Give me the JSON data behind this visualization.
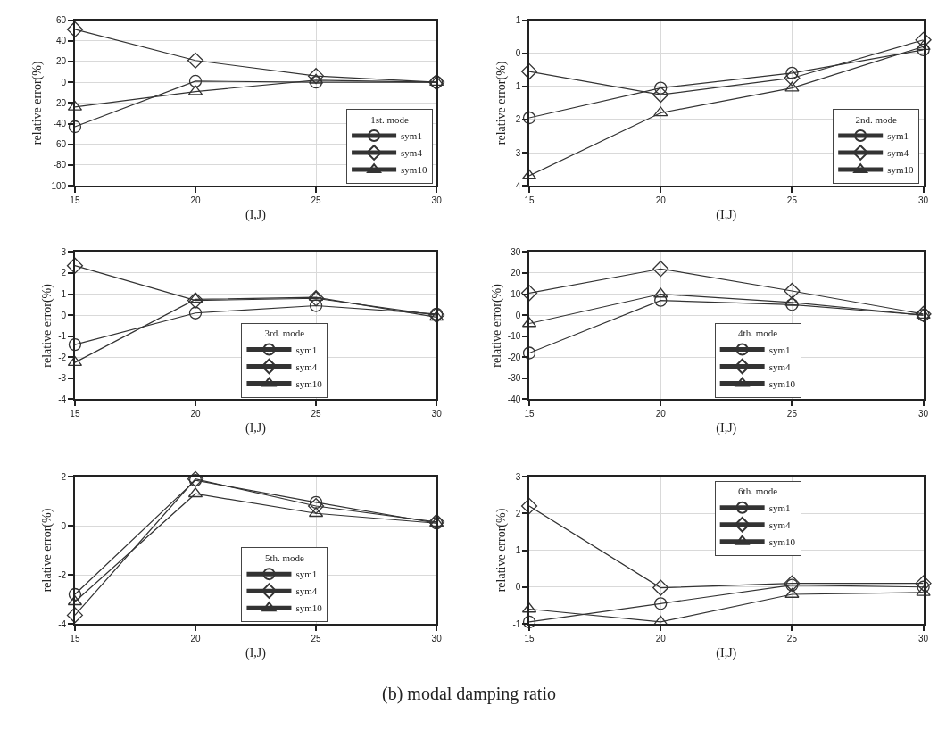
{
  "chart_data": [
    {
      "type": "line",
      "xlabel": "(I,J)",
      "ylabel": "relative error(%)",
      "legend_title": "1st. mode",
      "legend": "bottom right",
      "grid": true,
      "x": [
        15,
        20,
        25,
        30
      ],
      "xlim": [
        15,
        30
      ],
      "xticks": [
        15,
        20,
        25,
        30
      ],
      "ylim": [
        -100,
        60
      ],
      "yticks": [
        -100,
        -80,
        -60,
        -40,
        -20,
        0,
        20,
        40,
        60
      ],
      "series": [
        {
          "name": "sym1",
          "color": "#333333",
          "marker": "circle",
          "values": [
            -43,
            1,
            0,
            0
          ]
        },
        {
          "name": "sym4",
          "color": "#333333",
          "marker": "diamond",
          "values": [
            51,
            21,
            6,
            0
          ]
        },
        {
          "name": "sym10",
          "color": "#333333",
          "marker": "triangle",
          "values": [
            -24,
            -9,
            2,
            0
          ]
        }
      ]
    },
    {
      "type": "line",
      "xlabel": "(I,J)",
      "ylabel": "relative error(%)",
      "legend_title": "2nd. mode",
      "legend": "bottom right",
      "grid": true,
      "x": [
        15,
        20,
        25,
        30
      ],
      "xlim": [
        15,
        30
      ],
      "xticks": [
        15,
        20,
        25,
        30
      ],
      "ylim": [
        -4,
        1
      ],
      "yticks": [
        -4,
        -3,
        -2,
        -1,
        0,
        1
      ],
      "series": [
        {
          "name": "sym1",
          "color": "#333333",
          "marker": "circle",
          "values": [
            -1.95,
            -1.05,
            -0.6,
            0.1
          ]
        },
        {
          "name": "sym4",
          "color": "#333333",
          "marker": "diamond",
          "values": [
            -0.55,
            -1.25,
            -0.75,
            0.4
          ]
        },
        {
          "name": "sym10",
          "color": "#333333",
          "marker": "triangle",
          "values": [
            -3.7,
            -1.8,
            -1.05,
            0.2
          ]
        }
      ]
    },
    {
      "type": "line",
      "xlabel": "(I,J)",
      "ylabel": "relative error(%)",
      "legend_title": "3rd. mode",
      "legend": "bottom",
      "grid": true,
      "x": [
        15,
        20,
        25,
        30
      ],
      "xlim": [
        15,
        30
      ],
      "xticks": [
        15,
        20,
        25,
        30
      ],
      "ylim": [
        -4,
        3
      ],
      "yticks": [
        -4,
        -3,
        -2,
        -1,
        0,
        1,
        2,
        3
      ],
      "series": [
        {
          "name": "sym1",
          "color": "#333333",
          "marker": "circle",
          "values": [
            -1.4,
            0.1,
            0.45,
            0.05
          ]
        },
        {
          "name": "sym4",
          "color": "#333333",
          "marker": "diamond",
          "values": [
            2.35,
            0.7,
            0.8,
            0
          ]
        },
        {
          "name": "sym10",
          "color": "#333333",
          "marker": "triangle",
          "values": [
            -2.25,
            0.75,
            0.85,
            -0.1
          ]
        }
      ]
    },
    {
      "type": "line",
      "xlabel": "(I,J)",
      "ylabel": "relative error(%)",
      "legend_title": "4th. mode",
      "legend": "bottom",
      "grid": true,
      "x": [
        15,
        20,
        25,
        30
      ],
      "xlim": [
        15,
        30
      ],
      "xticks": [
        15,
        20,
        25,
        30
      ],
      "ylim": [
        -40,
        30
      ],
      "yticks": [
        -40,
        -30,
        -20,
        -10,
        0,
        10,
        20,
        30
      ],
      "series": [
        {
          "name": "sym1",
          "color": "#333333",
          "marker": "circle",
          "values": [
            -18,
            7,
            5,
            0
          ]
        },
        {
          "name": "sym4",
          "color": "#333333",
          "marker": "diamond",
          "values": [
            10.5,
            22,
            11.5,
            0.5
          ]
        },
        {
          "name": "sym10",
          "color": "#333333",
          "marker": "triangle",
          "values": [
            -4,
            10,
            6,
            0
          ]
        }
      ]
    },
    {
      "type": "line",
      "xlabel": "(I,J)",
      "ylabel": "relative error(%)",
      "legend_title": "5th. mode",
      "legend": "bottom",
      "grid": true,
      "x": [
        15,
        20,
        25,
        30
      ],
      "xlim": [
        15,
        30
      ],
      "xticks": [
        15,
        20,
        25,
        30
      ],
      "ylim": [
        -4,
        2
      ],
      "yticks": [
        -4,
        -2,
        0,
        2
      ],
      "series": [
        {
          "name": "sym1",
          "color": "#333333",
          "marker": "circle",
          "values": [
            -2.8,
            1.85,
            0.95,
            0.1
          ]
        },
        {
          "name": "sym4",
          "color": "#333333",
          "marker": "diamond",
          "values": [
            -3.65,
            1.9,
            0.8,
            0.15
          ]
        },
        {
          "name": "sym10",
          "color": "#333333",
          "marker": "triangle",
          "values": [
            -3.1,
            1.3,
            0.5,
            0.1
          ]
        }
      ]
    },
    {
      "type": "line",
      "xlabel": "(I,J)",
      "ylabel": "relative error(%)",
      "legend_title": "6th. mode",
      "legend": "top",
      "grid": true,
      "x": [
        15,
        20,
        25,
        30
      ],
      "xlim": [
        15,
        30
      ],
      "xticks": [
        15,
        20,
        25,
        30
      ],
      "ylim": [
        -1,
        3
      ],
      "yticks": [
        -1,
        0,
        1,
        2,
        3
      ],
      "annotations": [
        "(b) modal damping ratio"
      ],
      "series": [
        {
          "name": "sym1",
          "color": "#333333",
          "marker": "circle",
          "values": [
            -0.95,
            -0.45,
            0.05,
            0
          ]
        },
        {
          "name": "sym4",
          "color": "#333333",
          "marker": "diamond",
          "values": [
            2.2,
            -0.02,
            0.1,
            0.1
          ]
        },
        {
          "name": "sym10",
          "color": "#333333",
          "marker": "triangle",
          "values": [
            -0.6,
            -0.95,
            -0.2,
            -0.15
          ]
        }
      ]
    }
  ]
}
